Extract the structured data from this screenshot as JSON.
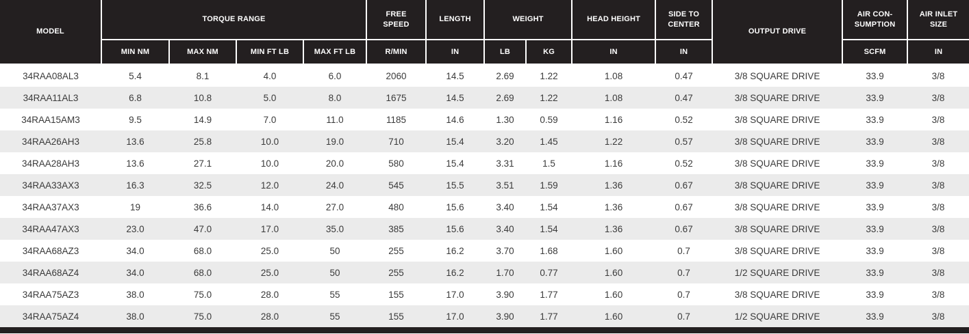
{
  "table": {
    "header": {
      "model": "MODEL",
      "torque_range": "TORQUE RANGE",
      "free_speed": "FREE\nSPEED",
      "length": "LENGTH",
      "weight": "WEIGHT",
      "head_height": "HEAD HEIGHT",
      "side_to_center": "SIDE TO\nCENTER",
      "output_drive": "OUTPUT DRIVE",
      "air_consumption": "AIR CON-\nSUMPTION",
      "air_inlet_size": "AIR INLET\nSIZE"
    },
    "subheader": [
      "MIN NM",
      "MAX NM",
      "MIN FT LB",
      "MAX FT LB",
      "R/MIN",
      "IN",
      "LB",
      "KG",
      "IN",
      "IN",
      "SCFM",
      "IN"
    ],
    "columns": [
      "model",
      "torque_min_nm",
      "torque_max_nm",
      "torque_min_ft_lb",
      "torque_max_ft_lb",
      "free_speed_r_min",
      "length_in",
      "weight_lb",
      "weight_kg",
      "head_height_in",
      "side_to_center_in",
      "output_drive",
      "air_consumption_scfm",
      "air_inlet_size_in"
    ],
    "rows": [
      [
        "34RAA08AL3",
        "5.4",
        "8.1",
        "4.0",
        "6.0",
        "2060",
        "14.5",
        "2.69",
        "1.22",
        "1.08",
        "0.47",
        "3/8 SQUARE DRIVE",
        "33.9",
        "3/8"
      ],
      [
        "34RAA11AL3",
        "6.8",
        "10.8",
        "5.0",
        "8.0",
        "1675",
        "14.5",
        "2.69",
        "1.22",
        "1.08",
        "0.47",
        "3/8 SQUARE DRIVE",
        "33.9",
        "3/8"
      ],
      [
        "34RAA15AM3",
        "9.5",
        "14.9",
        "7.0",
        "11.0",
        "1185",
        "14.6",
        "1.30",
        "0.59",
        "1.16",
        "0.52",
        "3/8 SQUARE DRIVE",
        "33.9",
        "3/8"
      ],
      [
        "34RAA26AH3",
        "13.6",
        "25.8",
        "10.0",
        "19.0",
        "710",
        "15.4",
        "3.20",
        "1.45",
        "1.22",
        "0.57",
        "3/8 SQUARE DRIVE",
        "33.9",
        "3/8"
      ],
      [
        "34RAA28AH3",
        "13.6",
        "27.1",
        "10.0",
        "20.0",
        "580",
        "15.4",
        "3.31",
        "1.5",
        "1.16",
        "0.52",
        "3/8 SQUARE DRIVE",
        "33.9",
        "3/8"
      ],
      [
        "34RAA33AX3",
        "16.3",
        "32.5",
        "12.0",
        "24.0",
        "545",
        "15.5",
        "3.51",
        "1.59",
        "1.36",
        "0.67",
        "3/8 SQUARE DRIVE",
        "33.9",
        "3/8"
      ],
      [
        "34RAA37AX3",
        "19",
        "36.6",
        "14.0",
        "27.0",
        "480",
        "15.6",
        "3.40",
        "1.54",
        "1.36",
        "0.67",
        "3/8 SQUARE DRIVE",
        "33.9",
        "3/8"
      ],
      [
        "34RAA47AX3",
        "23.0",
        "47.0",
        "17.0",
        "35.0",
        "385",
        "15.6",
        "3.40",
        "1.54",
        "1.36",
        "0.67",
        "3/8 SQUARE DRIVE",
        "33.9",
        "3/8"
      ],
      [
        "34RAA68AZ3",
        "34.0",
        "68.0",
        "25.0",
        "50",
        "255",
        "16.2",
        "3.70",
        "1.68",
        "1.60",
        "0.7",
        "3/8 SQUARE DRIVE",
        "33.9",
        "3/8"
      ],
      [
        "34RAA68AZ4",
        "34.0",
        "68.0",
        "25.0",
        "50",
        "255",
        "16.2",
        "1.70",
        "0.77",
        "1.60",
        "0.7",
        "1/2 SQUARE DRIVE",
        "33.9",
        "3/8"
      ],
      [
        "34RAA75AZ3",
        "38.0",
        "75.0",
        "28.0",
        "55",
        "155",
        "17.0",
        "3.90",
        "1.77",
        "1.60",
        "0.7",
        "3/8 SQUARE DRIVE",
        "33.9",
        "3/8"
      ],
      [
        "34RAA75AZ4",
        "38.0",
        "75.0",
        "28.0",
        "55",
        "155",
        "17.0",
        "3.90",
        "1.77",
        "1.60",
        "0.7",
        "1/2 SQUARE DRIVE",
        "33.9",
        "3/8"
      ]
    ]
  },
  "colors": {
    "header_bg": "#231f20",
    "header_text": "#ffffff",
    "row_bg": "#ffffff",
    "row_alt_bg": "#ebebeb",
    "body_text": "#3a3a3a"
  }
}
